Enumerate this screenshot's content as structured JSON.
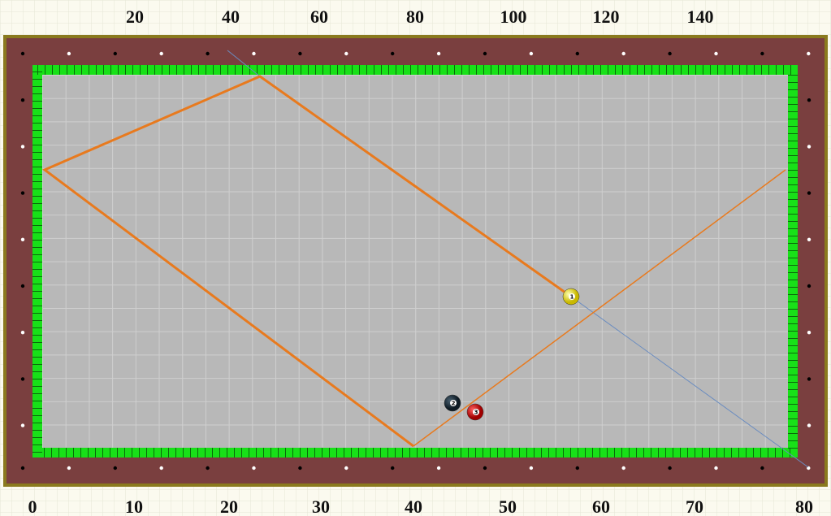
{
  "top_scale": [
    20,
    40,
    60,
    80,
    100,
    120,
    140
  ],
  "bottom_scale": [
    0,
    10,
    20,
    30,
    40,
    50,
    60,
    70,
    80
  ],
  "balls": [
    {
      "label": "1"
    },
    {
      "label": "2"
    },
    {
      "label": "3"
    }
  ]
}
